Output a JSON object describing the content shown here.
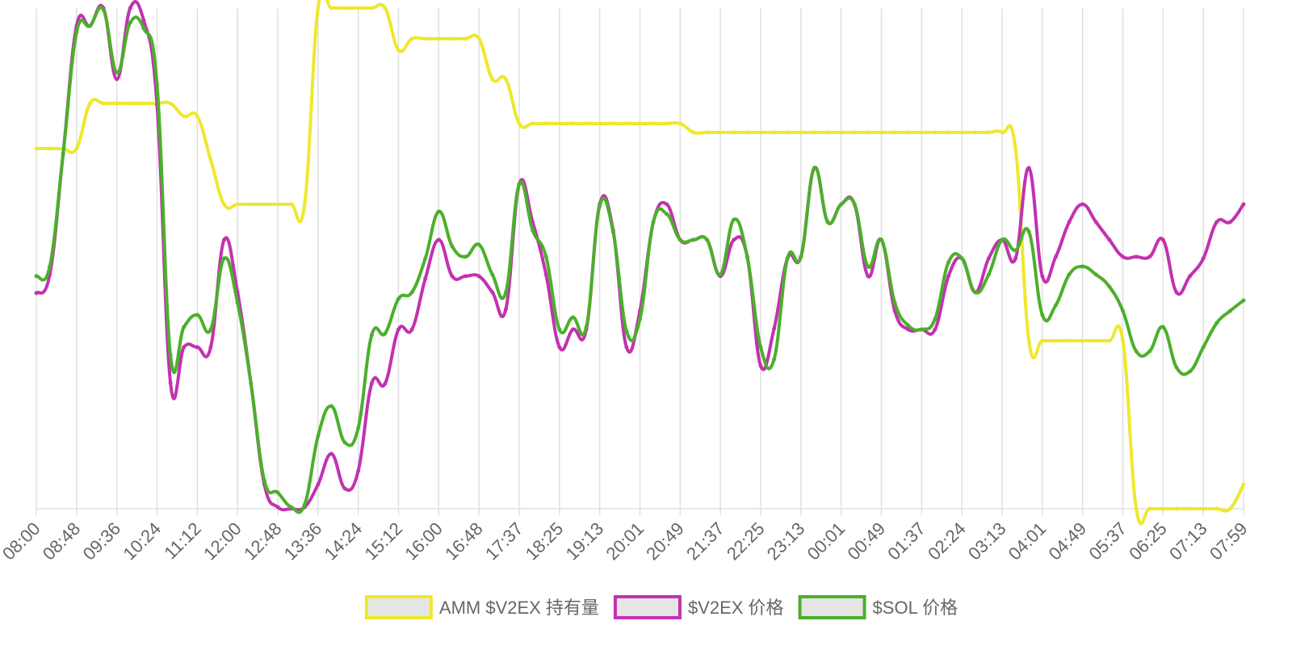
{
  "chart_data": {
    "type": "line",
    "categories": [
      "08:00",
      null,
      null,
      "08:48",
      null,
      null,
      "09:36",
      null,
      null,
      "10:24",
      null,
      null,
      "11:12",
      null,
      null,
      "12:00",
      null,
      null,
      "12:48",
      null,
      null,
      "13:36",
      null,
      null,
      "14:24",
      null,
      null,
      "15:12",
      null,
      null,
      "16:00",
      null,
      null,
      "16:48",
      null,
      null,
      "17:37",
      null,
      null,
      "18:25",
      null,
      null,
      "19:13",
      null,
      null,
      "20:01",
      null,
      null,
      "20:49",
      null,
      null,
      "21:37",
      null,
      null,
      "22:25",
      null,
      null,
      "23:13",
      null,
      null,
      "00:01",
      null,
      null,
      "00:49",
      null,
      null,
      "01:37",
      null,
      null,
      "02:24",
      null,
      null,
      "03:13",
      null,
      null,
      "04:01",
      null,
      null,
      "04:49",
      null,
      null,
      "05:37",
      null,
      null,
      "06:25",
      null,
      null,
      "07:13",
      null,
      null,
      "07:59"
    ],
    "series": [
      {
        "name": "AMM $V2EX 持有量",
        "color": "#eee82e",
        "values": [
          446,
          446,
          446,
          446,
          502,
          502,
          502,
          502,
          502,
          502,
          502,
          486,
          486,
          432,
          377,
          377,
          377,
          377,
          377,
          377,
          377,
          620,
          620,
          620,
          620,
          620,
          620,
          568,
          582,
          582,
          582,
          582,
          582,
          582,
          532,
          532,
          477,
          477,
          477,
          477,
          477,
          477,
          477,
          477,
          477,
          477,
          477,
          477,
          477,
          466,
          466,
          466,
          466,
          466,
          466,
          466,
          466,
          466,
          466,
          466,
          466,
          466,
          466,
          466,
          466,
          466,
          466,
          466,
          466,
          466,
          466,
          466,
          466,
          446,
          208,
          208,
          208,
          208,
          208,
          208,
          208,
          208,
          0,
          0,
          0,
          0,
          0,
          0,
          0,
          0,
          30
        ]
      },
      {
        "name": "$V2EX 价格",
        "color": "#c232b0",
        "values": [
          267,
          290,
          440,
          598,
          598,
          620,
          532,
          620,
          605,
          500,
          156,
          200,
          200,
          200,
          333,
          268,
          155,
          30,
          2,
          0,
          2,
          30,
          68,
          25,
          47,
          155,
          155,
          222,
          222,
          285,
          333,
          288,
          288,
          288,
          268,
          247,
          402,
          355,
          290,
          200,
          222,
          222,
          377,
          345,
          200,
          245,
          355,
          377,
          333,
          333,
          333,
          288,
          333,
          312,
          177,
          223,
          310,
          312,
          422,
          355,
          377,
          377,
          288,
          333,
          245,
          222,
          222,
          222,
          288,
          310,
          268,
          310,
          333,
          310,
          422,
          288,
          312,
          355,
          377,
          355,
          333,
          312,
          312,
          312,
          333,
          268,
          288,
          310,
          355,
          355,
          377
        ]
      },
      {
        "name": "$SOL 价格",
        "color": "#4caf2c",
        "values": [
          288,
          300,
          440,
          590,
          598,
          618,
          540,
          602,
          595,
          525,
          190,
          225,
          240,
          222,
          310,
          255,
          155,
          35,
          20,
          2,
          5,
          90,
          127,
          82,
          100,
          215,
          217,
          260,
          268,
          310,
          368,
          325,
          312,
          327,
          290,
          268,
          402,
          345,
          312,
          222,
          237,
          225,
          375,
          343,
          220,
          235,
          355,
          365,
          333,
          333,
          333,
          290,
          358,
          312,
          200,
          185,
          310,
          312,
          422,
          355,
          377,
          377,
          300,
          333,
          255,
          227,
          222,
          235,
          305,
          310,
          268,
          290,
          333,
          320,
          343,
          240,
          252,
          290,
          300,
          290,
          275,
          245,
          195,
          195,
          225,
          175,
          170,
          200,
          230,
          245,
          258
        ]
      }
    ],
    "ylim": [
      0,
      620
    ],
    "grid": true,
    "legend": "bottom"
  }
}
